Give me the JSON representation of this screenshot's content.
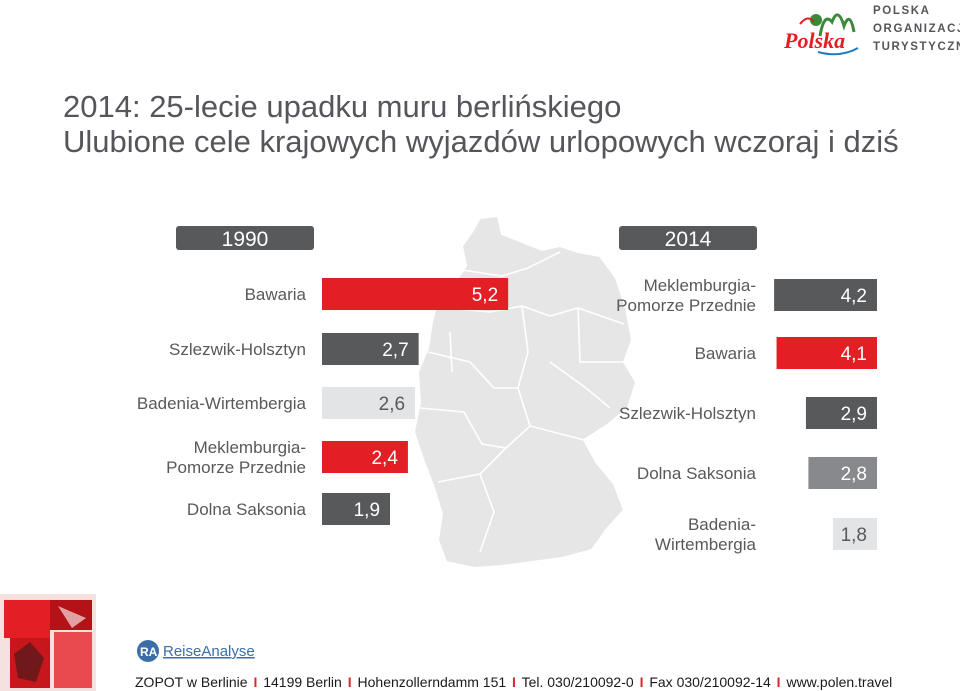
{
  "header": {
    "title_line1": "2014: 25-lecie upadku muru berlińskiego",
    "title_line2": "Ulubione cele krajowych wyjazdów urlopowych wczoraj i dziś"
  },
  "logo": {
    "wordmark": "Polska",
    "org_line1": "POLSKA",
    "org_line2": "ORGANIZACJA",
    "org_line3": "TURYSTYCZNA"
  },
  "colors": {
    "red": "#e31e24",
    "dark": "#58595b",
    "medium": "#88898c",
    "light": "#e3e4e5",
    "pill": "#58595b",
    "map_fill": "#e6e6e6",
    "map_border": "#ffffff"
  },
  "chart_data": [
    {
      "type": "bar",
      "orientation": "horizontal",
      "title": "1990",
      "categories": [
        "Bawaria",
        "Szlezwik-Holsztyn",
        "Badenia-Wirtembergia",
        "Meklemburgia-\nPomorze Przednie",
        "Dolna Saksonia"
      ],
      "values": [
        5.2,
        2.7,
        2.6,
        2.4,
        1.9
      ],
      "value_labels": [
        "5,2",
        "2,7",
        "2,6",
        "2,4",
        "1,9"
      ],
      "bar_colors": [
        "red",
        "dark",
        "light",
        "red",
        "dark"
      ],
      "grid": false
    },
    {
      "type": "bar",
      "orientation": "horizontal",
      "title": "2014",
      "categories": [
        "Meklemburgia-\nPomorze Przednie",
        "Bawaria",
        "Szlezwik-Holsztyn",
        "Dolna Saksonia",
        "Badenia-\nWirtembergia"
      ],
      "values": [
        4.2,
        4.1,
        2.9,
        2.8,
        1.8
      ],
      "value_labels": [
        "4,2",
        "4,1",
        "2,9",
        "2,8",
        "1,8"
      ],
      "bar_colors": [
        "dark",
        "red",
        "dark",
        "medium",
        "light"
      ],
      "grid": false
    }
  ],
  "footer": {
    "ra_prefix": "RA",
    "ra_name": "ReiseAnalyse",
    "parts": [
      "ZOPOT w Berlinie",
      "14199 Berlin",
      "Hohenzollerndamm 151",
      "Tel. 030/210092-0",
      "Fax 030/210092-14",
      "www.polen.travel"
    ],
    "separator": "I"
  }
}
